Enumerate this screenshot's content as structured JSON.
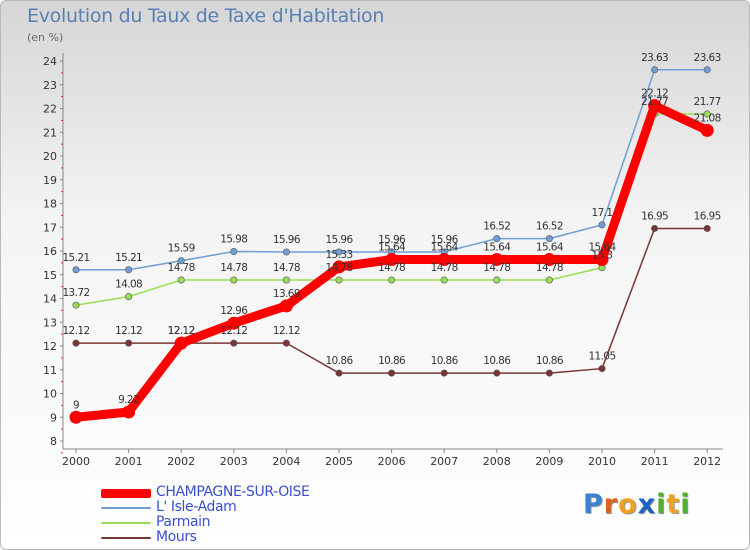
{
  "title": "Evolution du Taux de Taxe d'Habitation",
  "unit_label": "(en %)",
  "chart_data": {
    "type": "line",
    "x": [
      "2000",
      "2001",
      "2002",
      "2003",
      "2004",
      "2005",
      "2006",
      "2007",
      "2008",
      "2009",
      "2010",
      "2011",
      "2012"
    ],
    "ylim": [
      8,
      24
    ],
    "yticks": [
      8,
      9,
      10,
      11,
      12,
      13,
      14,
      15,
      16,
      17,
      18,
      19,
      20,
      21,
      22,
      23,
      24
    ],
    "grid": false,
    "series": [
      {
        "name": "CHAMPAGNE-SUR-OISE",
        "color": "#ff0000",
        "values": [
          9,
          9.22,
          12.12,
          12.96,
          13.69,
          15.33,
          15.64,
          15.64,
          15.64,
          15.64,
          15.64,
          22.12,
          21.08
        ],
        "labels": [
          "9",
          "9.22",
          "12.12",
          "12.96",
          "13.69",
          "15.33",
          "15.64",
          "15.64",
          "15.64",
          "15.64",
          "15.64",
          "22.12",
          "21.08"
        ]
      },
      {
        "name": "L' Isle-Adam",
        "color": "#6e9fd6",
        "values": [
          15.21,
          15.21,
          15.59,
          15.98,
          15.96,
          15.96,
          15.96,
          15.96,
          16.52,
          16.52,
          17.1,
          23.63,
          23.63
        ],
        "labels": [
          "15.21",
          "15.21",
          "15.59",
          "15.98",
          "15.96",
          "15.96",
          "15.96",
          "15.96",
          "16.52",
          "16.52",
          "17.1",
          "23.63",
          "23.63"
        ]
      },
      {
        "name": "Parmain",
        "color": "#99dd55",
        "values": [
          13.72,
          14.08,
          14.78,
          14.78,
          14.78,
          14.78,
          14.78,
          14.78,
          14.78,
          14.78,
          15.3,
          21.77,
          21.77
        ],
        "labels": [
          "13.72",
          "14.08",
          "14.78",
          "14.78",
          "14.78",
          "14.78",
          "14.78",
          "14.78",
          "14.78",
          "14.78",
          "15.3",
          "21.77",
          "21.77"
        ]
      },
      {
        "name": "Mours",
        "color": "#7a3535",
        "values": [
          12.12,
          12.12,
          12.12,
          12.12,
          12.12,
          10.86,
          10.86,
          10.86,
          10.86,
          10.86,
          11.05,
          16.95,
          16.95
        ],
        "labels": [
          "12.12",
          "12.12",
          "12.12",
          "12.12",
          "12.12",
          "10.86",
          "10.86",
          "10.86",
          "10.86",
          "10.86",
          "11.05",
          "16.95",
          "16.95"
        ]
      }
    ]
  },
  "legend": [
    {
      "label": "CHAMPAGNE-SUR-OISE",
      "color": "#ff0000"
    },
    {
      "label": "L' Isle-Adam",
      "color": "#6e9fd6"
    },
    {
      "label": "Parmain",
      "color": "#99dd55"
    },
    {
      "label": "Mours",
      "color": "#7a3535"
    }
  ],
  "logo": {
    "letters": [
      "P",
      "r",
      "o",
      "x",
      "i",
      "t",
      "i"
    ],
    "colors": [
      "#3a7fd0",
      "#e06020",
      "#f0a020",
      "#2060c0",
      "#50b030",
      "#f0a020",
      "#50b030"
    ]
  }
}
